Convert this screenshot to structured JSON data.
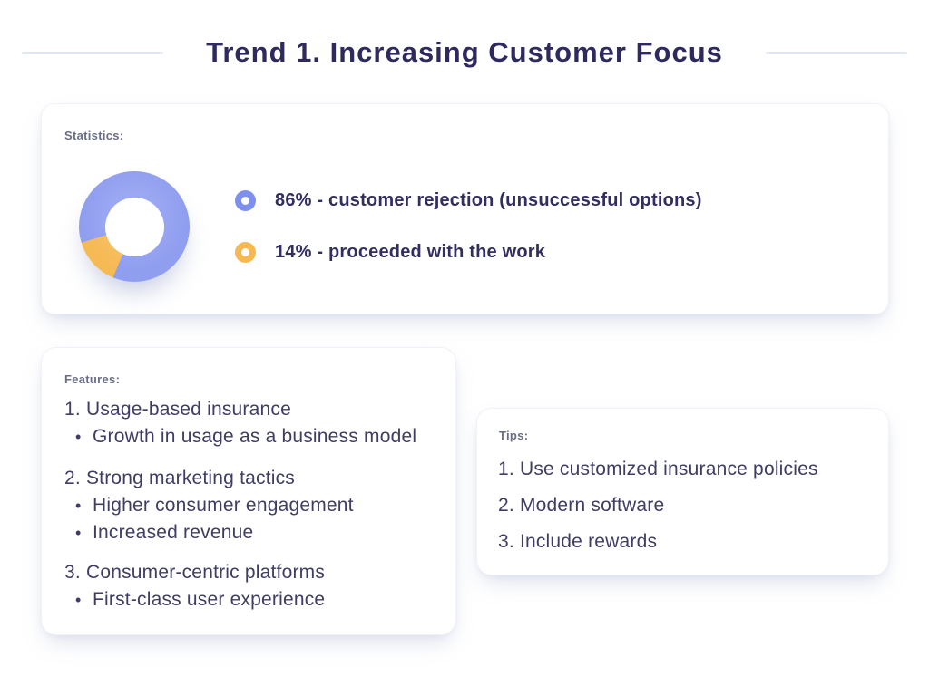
{
  "title": "Trend 1. Increasing Customer Focus",
  "statistics": {
    "label": "Statistics:",
    "legend": [
      {
        "text": "86% - customer rejection (unsuccessful options)",
        "color": "#7e90ef"
      },
      {
        "text": "14% - proceeded with the work",
        "color": "#f6b851"
      }
    ]
  },
  "chart_data": {
    "type": "pie",
    "donut": true,
    "labels": [
      "customer rejection (unsuccessful options)",
      "proceeded with the work"
    ],
    "values": [
      86,
      14
    ],
    "colors": [
      "#909ef0",
      "#f6ba55"
    ],
    "legend_position": "right"
  },
  "features": {
    "label": "Features:",
    "groups": [
      {
        "title": "1. Usage-based insurance",
        "bullets": [
          "Growth in usage as a business model"
        ]
      },
      {
        "title": "2. Strong marketing tactics",
        "bullets": [
          "Higher consumer engagement",
          "Increased revenue"
        ]
      },
      {
        "title": "3. Consumer-centric platforms",
        "bullets": [
          "First-class user experience"
        ]
      }
    ]
  },
  "tips": {
    "label": "Tips:",
    "items": [
      "1. Use customized insurance policies",
      "2. Modern software",
      "3. Include rewards"
    ]
  },
  "colors": {
    "title_text": "#2e2a5f",
    "body_text": "#403d64",
    "label_text": "#6a6d87",
    "donut_blue": "#909ef0",
    "donut_orange": "#f6ba55",
    "decorative_line": "#e2e7f1",
    "card_background": "#ffffff"
  }
}
